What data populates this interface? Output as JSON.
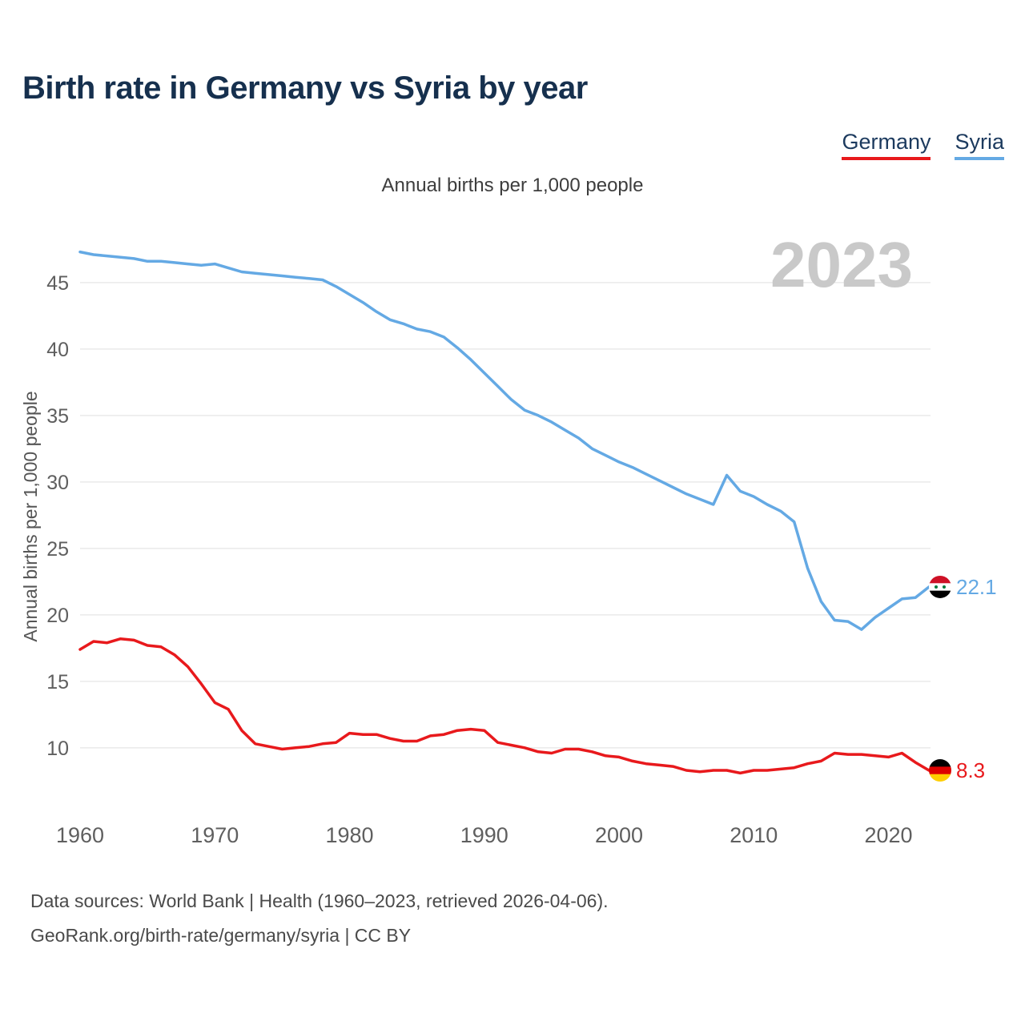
{
  "footer": {
    "line1": "Data sources: World Bank | Health (1960–2023, retrieved 2026-04-06).",
    "line2": "GeoRank.org/birth-rate/germany/syria | CC BY"
  },
  "chart_data": {
    "type": "line",
    "title": "Birth rate in Germany vs Syria by year",
    "subtitle": "Annual births per 1,000 people",
    "ylabel": "Annual births per 1,000 people",
    "watermark": "2023",
    "grid": true,
    "legend_position": "top-right",
    "ylim": [
      7.7,
      47.7
    ],
    "yticks": [
      10,
      15,
      20,
      25,
      30,
      35,
      40,
      45
    ],
    "xticks": [
      1960,
      1970,
      1980,
      1990,
      2000,
      2010,
      2020
    ],
    "x": [
      1960,
      1961,
      1962,
      1963,
      1964,
      1965,
      1966,
      1967,
      1968,
      1969,
      1970,
      1971,
      1972,
      1973,
      1974,
      1975,
      1976,
      1977,
      1978,
      1979,
      1980,
      1981,
      1982,
      1983,
      1984,
      1985,
      1986,
      1987,
      1988,
      1989,
      1990,
      1991,
      1992,
      1993,
      1994,
      1995,
      1996,
      1997,
      1998,
      1999,
      2000,
      2001,
      2002,
      2003,
      2004,
      2005,
      2006,
      2007,
      2008,
      2009,
      2010,
      2011,
      2012,
      2013,
      2014,
      2015,
      2016,
      2017,
      2018,
      2019,
      2020,
      2021,
      2022,
      2023
    ],
    "series": [
      {
        "name": "Germany",
        "color": "#e8191c",
        "end_label": "8.3",
        "flag_stripes": [
          "#000000",
          "#dd0000",
          "#ffce00"
        ],
        "flag_stars": 0,
        "values": [
          17.4,
          18.0,
          17.9,
          18.2,
          18.1,
          17.7,
          17.6,
          17.0,
          16.1,
          14.8,
          13.4,
          12.9,
          11.3,
          10.3,
          10.1,
          9.9,
          10.0,
          10.1,
          10.3,
          10.4,
          11.1,
          11.0,
          11.0,
          10.7,
          10.5,
          10.5,
          10.9,
          11.0,
          11.3,
          11.4,
          11.3,
          10.4,
          10.2,
          10.0,
          9.7,
          9.6,
          9.9,
          9.9,
          9.7,
          9.4,
          9.3,
          9.0,
          8.8,
          8.7,
          8.6,
          8.3,
          8.2,
          8.3,
          8.3,
          8.1,
          8.3,
          8.3,
          8.4,
          8.5,
          8.8,
          9.0,
          9.6,
          9.5,
          9.5,
          9.4,
          9.3,
          9.6,
          8.9,
          8.3
        ]
      },
      {
        "name": "Syria",
        "color": "#64a9e4",
        "end_label": "22.1",
        "flag_stripes": [
          "#ce1126",
          "#ffffff",
          "#000000"
        ],
        "flag_stars": 2,
        "star_color": "#007a3d",
        "values": [
          47.3,
          47.1,
          47.0,
          46.9,
          46.8,
          46.6,
          46.6,
          46.5,
          46.4,
          46.3,
          46.4,
          46.1,
          45.8,
          45.7,
          45.6,
          45.5,
          45.4,
          45.3,
          45.2,
          44.7,
          44.1,
          43.5,
          42.8,
          42.2,
          41.9,
          41.5,
          41.3,
          40.9,
          40.1,
          39.2,
          38.2,
          37.2,
          36.2,
          35.4,
          35.0,
          34.5,
          33.9,
          33.3,
          32.5,
          32.0,
          31.5,
          31.1,
          30.6,
          30.1,
          29.6,
          29.1,
          28.7,
          28.3,
          30.5,
          29.3,
          28.9,
          28.3,
          27.8,
          27.0,
          23.5,
          21.0,
          19.6,
          19.5,
          18.9,
          19.8,
          20.5,
          21.2,
          21.3,
          22.1
        ]
      }
    ]
  }
}
